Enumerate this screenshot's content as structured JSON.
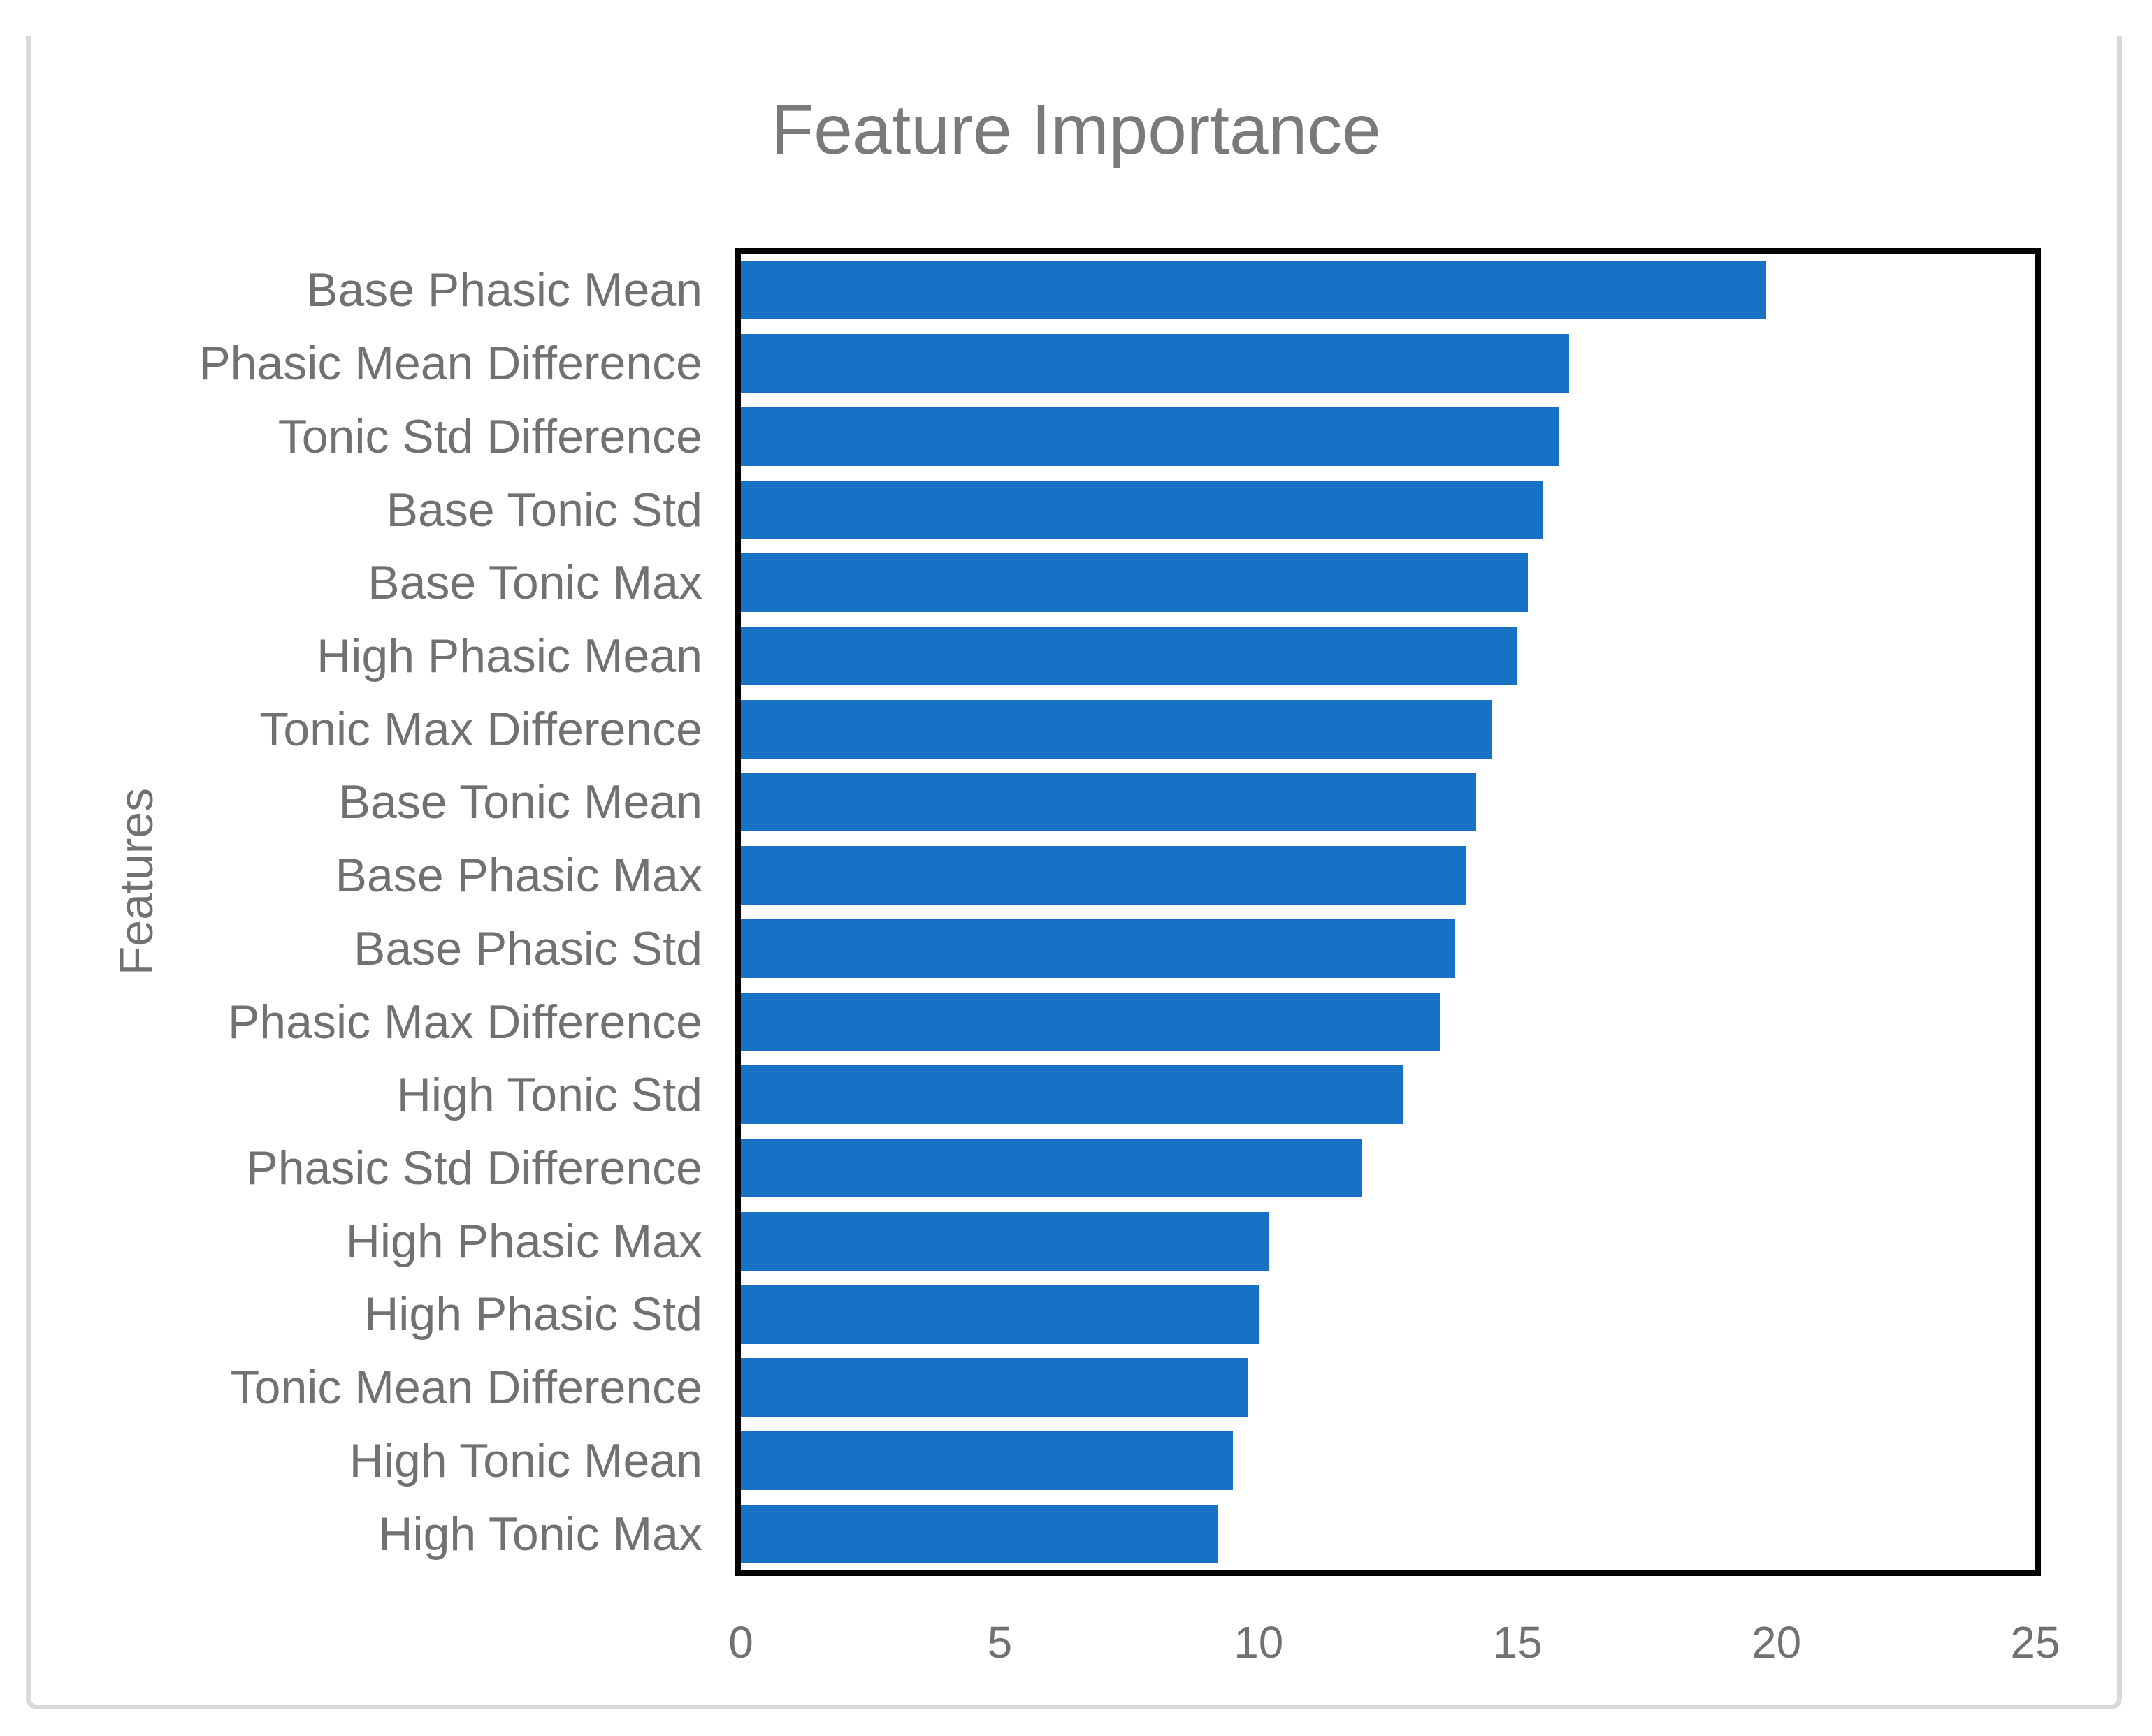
{
  "chart": {
    "title": "Feature Importance",
    "y_axis_title": "Features",
    "bar_color": "#1772C6",
    "title_color": "#7A7A7A",
    "label_color": "#717171",
    "frame_color": "#D9D9D9",
    "plot_border_color": "#000000"
  },
  "chart_data": {
    "type": "bar",
    "orientation": "horizontal",
    "title": "Feature Importance",
    "xlabel": "",
    "ylabel": "Features",
    "xlim": [
      0,
      25
    ],
    "x_tick_values": [
      0,
      5,
      10,
      15,
      20,
      25
    ],
    "x_tick_labels": [
      "0",
      "5",
      "10",
      "15",
      "20",
      "25"
    ],
    "grid": false,
    "legend": false,
    "categories": [
      "Base Phasic Mean",
      "Phasic Mean Difference",
      "Tonic Std Difference",
      "Base Tonic Std",
      "Base Tonic Max",
      "High Phasic Mean",
      "Tonic Max Difference",
      "Base Tonic Mean",
      "Base Phasic Max",
      "Base Phasic Std",
      "Phasic Max Difference",
      "High Tonic Std",
      "Phasic Std Difference",
      "High Phasic Max",
      "High Phasic Std",
      "Tonic Mean Difference",
      "High Tonic Mean",
      "High Tonic Max"
    ],
    "values": [
      19.8,
      16.0,
      15.8,
      15.5,
      15.2,
      15.0,
      14.5,
      14.2,
      14.0,
      13.8,
      13.5,
      12.8,
      12.0,
      10.2,
      10.0,
      9.8,
      9.5,
      9.2
    ]
  }
}
